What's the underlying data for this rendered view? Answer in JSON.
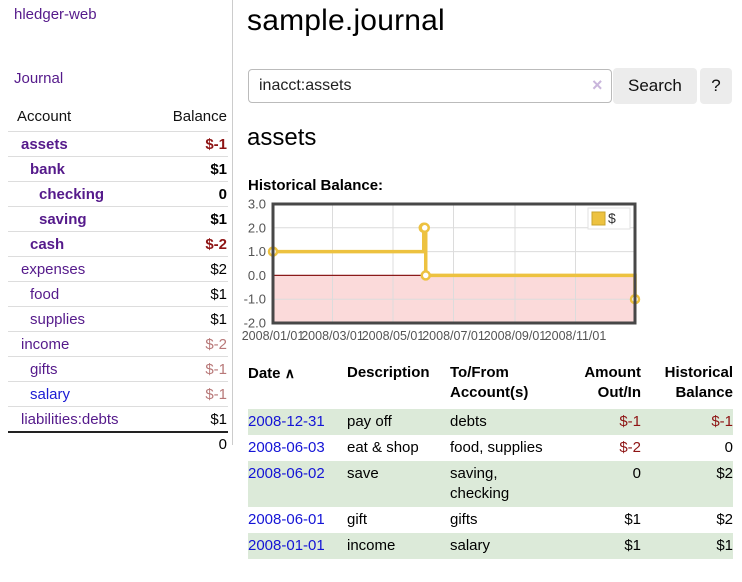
{
  "sidebar": {
    "app_title": "hledger-web",
    "nav": {
      "journal_label": "Journal"
    },
    "accounts_table": {
      "headers": {
        "account": "Account",
        "balance": "Balance"
      },
      "rows": [
        {
          "label": "assets",
          "balance": "$-1",
          "depth": 1,
          "bold": true,
          "link_color": "purple",
          "balance_style": "neg-strong"
        },
        {
          "label": "bank",
          "balance": "$1",
          "depth": 2,
          "bold": true,
          "link_color": "purple",
          "balance_style": "normal"
        },
        {
          "label": "checking",
          "balance": "0",
          "depth": 3,
          "bold": true,
          "link_color": "purple",
          "balance_style": "normal"
        },
        {
          "label": "saving",
          "balance": "$1",
          "depth": 3,
          "bold": true,
          "link_color": "purple",
          "balance_style": "normal"
        },
        {
          "label": "cash",
          "balance": "$-2",
          "depth": 2,
          "bold": true,
          "link_color": "purple",
          "balance_style": "neg-strong"
        },
        {
          "label": "expenses",
          "balance": "$2",
          "depth": 1,
          "bold": false,
          "link_color": "purple",
          "balance_style": "normal"
        },
        {
          "label": "food",
          "balance": "$1",
          "depth": 2,
          "bold": false,
          "link_color": "purple",
          "balance_style": "normal"
        },
        {
          "label": "supplies",
          "balance": "$1",
          "depth": 2,
          "bold": false,
          "link_color": "purple",
          "balance_style": "normal"
        },
        {
          "label": "income",
          "balance": "$-2",
          "depth": 1,
          "bold": false,
          "link_color": "purple",
          "balance_style": "neg-soft"
        },
        {
          "label": "gifts",
          "balance": "$-1",
          "depth": 2,
          "bold": false,
          "link_color": "purple",
          "balance_style": "neg-soft"
        },
        {
          "label": "salary",
          "balance": "$-1",
          "depth": 2,
          "bold": false,
          "link_color": "blue",
          "balance_style": "neg-soft"
        },
        {
          "label": "liabilities:debts",
          "balance": "$1",
          "depth": 1,
          "bold": false,
          "link_color": "purple",
          "balance_style": "normal"
        }
      ],
      "total": "0"
    }
  },
  "main": {
    "page_title": "sample.journal",
    "search": {
      "value": "inacct:assets",
      "clear_icon": "×",
      "button_label": "Search",
      "help_label": "?"
    },
    "account_heading": "assets",
    "chart_heading": "Historical Balance:"
  },
  "chart_data": {
    "type": "line",
    "step": true,
    "title": "Historical Balance",
    "series": [
      {
        "name": "$",
        "color": "#edc240",
        "points": [
          {
            "date": "2008-01-01",
            "value": 1
          },
          {
            "date": "2008-06-01",
            "value": 2
          },
          {
            "date": "2008-06-02",
            "value": 2
          },
          {
            "date": "2008-06-03",
            "value": 0
          },
          {
            "date": "2008-12-31",
            "value": -1
          }
        ]
      }
    ],
    "xlim": [
      "2008-01-01",
      "2008-12-31"
    ],
    "ylim": [
      -2,
      3
    ],
    "yticks": [
      {
        "value": 3,
        "label": "3.0"
      },
      {
        "value": 2,
        "label": "2.0"
      },
      {
        "value": 1,
        "label": "1.0"
      },
      {
        "value": 0,
        "label": "0.0"
      },
      {
        "value": -1,
        "label": "-1.0"
      },
      {
        "value": -2,
        "label": "-2.0"
      }
    ],
    "xticks": [
      {
        "date": "2008-01-01",
        "label": "2008/01/01"
      },
      {
        "date": "2008-03-01",
        "label": "2008/03/01"
      },
      {
        "date": "2008-05-01",
        "label": "2008/05/01"
      },
      {
        "date": "2008-07-01",
        "label": "2008/07/01"
      },
      {
        "date": "2008-09-01",
        "label": "2008/09/01"
      },
      {
        "date": "2008-11-01",
        "label": "2008/11/01"
      }
    ],
    "legend": {
      "label": "$",
      "position": "top-right"
    },
    "grid": true,
    "negative_region": {
      "fill": "#fbdada",
      "zero_line_color": "#8b1a1a"
    },
    "colors": {
      "line": "#edc240",
      "marker_fill": "#ffffff",
      "marker_stroke": "#edc240",
      "border": "#474747",
      "gridline": "#dcdcdc",
      "tick_text": "#545454",
      "legend_square": "#edc240",
      "legend_square_border": "#c9a42e"
    }
  },
  "transactions_table": {
    "headers": {
      "date": "Date",
      "sort_icon": "∧",
      "description": "Description",
      "tofrom": "To/From Account(s)",
      "amount": "Amount Out/In",
      "balance": "Historical Balance"
    },
    "rows": [
      {
        "date": "2008-12-31",
        "description": "pay off",
        "accounts": "debts",
        "amount": "$-1",
        "amount_negative": true,
        "balance": "$-1",
        "balance_negative": true
      },
      {
        "date": "2008-06-03",
        "description": "eat & shop",
        "accounts": "food, supplies",
        "amount": "$-2",
        "amount_negative": true,
        "balance": "0",
        "balance_negative": false
      },
      {
        "date": "2008-06-02",
        "description": "save",
        "accounts": "saving, checking",
        "amount": "0",
        "amount_negative": false,
        "balance": "$2",
        "balance_negative": false
      },
      {
        "date": "2008-06-01",
        "description": "gift",
        "accounts": "gifts",
        "amount": "$1",
        "amount_negative": false,
        "balance": "$2",
        "balance_negative": false
      },
      {
        "date": "2008-01-01",
        "description": "income",
        "accounts": "salary",
        "amount": "$1",
        "amount_negative": false,
        "balance": "$1",
        "balance_negative": false
      }
    ]
  }
}
